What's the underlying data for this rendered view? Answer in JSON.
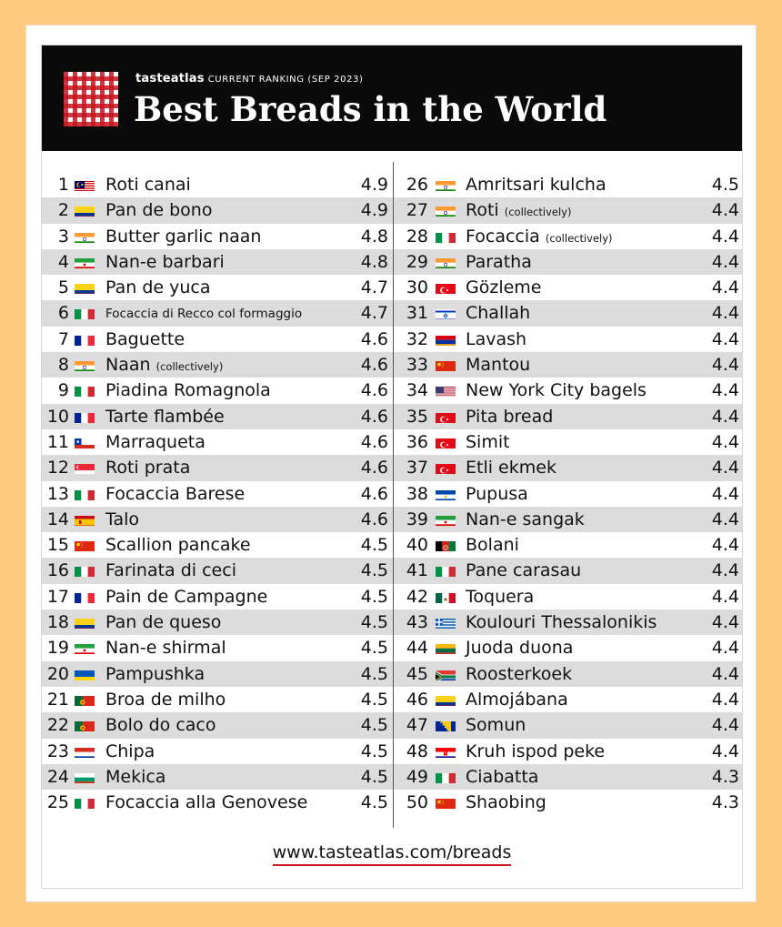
{
  "header": {
    "brand": "tasteatlas",
    "subtitle": "CURRENT RANKING (SEP 2023)",
    "title": "Best Breads in the World"
  },
  "left_column": [
    {
      "rank": "1",
      "name": "Roti canai",
      "note": "",
      "score": "4.9",
      "flag": "malaysia"
    },
    {
      "rank": "2",
      "name": "Pan de bono",
      "note": "",
      "score": "4.9",
      "flag": "colombia"
    },
    {
      "rank": "3",
      "name": "Butter garlic naan",
      "note": "",
      "score": "4.8",
      "flag": "india"
    },
    {
      "rank": "4",
      "name": "Nan-e barbari",
      "note": "",
      "score": "4.8",
      "flag": "iran"
    },
    {
      "rank": "5",
      "name": "Pan de yuca",
      "note": "",
      "score": "4.7",
      "flag": "colombia"
    },
    {
      "rank": "6",
      "name": "Focaccia di Recco col formaggio",
      "note": "",
      "score": "4.7",
      "flag": "italy",
      "small": true
    },
    {
      "rank": "7",
      "name": "Baguette",
      "note": "",
      "score": "4.6",
      "flag": "france"
    },
    {
      "rank": "8",
      "name": "Naan",
      "note": "(collectively)",
      "score": "4.6",
      "flag": "india"
    },
    {
      "rank": "9",
      "name": "Piadina Romagnola",
      "note": "",
      "score": "4.6",
      "flag": "italy"
    },
    {
      "rank": "10",
      "name": "Tarte flambée",
      "note": "",
      "score": "4.6",
      "flag": "france"
    },
    {
      "rank": "11",
      "name": "Marraqueta",
      "note": "",
      "score": "4.6",
      "flag": "chile"
    },
    {
      "rank": "12",
      "name": "Roti prata",
      "note": "",
      "score": "4.6",
      "flag": "singapore"
    },
    {
      "rank": "13",
      "name": "Focaccia Barese",
      "note": "",
      "score": "4.6",
      "flag": "italy"
    },
    {
      "rank": "14",
      "name": "Talo",
      "note": "",
      "score": "4.6",
      "flag": "spain"
    },
    {
      "rank": "15",
      "name": "Scallion pancake",
      "note": "",
      "score": "4.5",
      "flag": "china"
    },
    {
      "rank": "16",
      "name": "Farinata di ceci",
      "note": "",
      "score": "4.5",
      "flag": "italy"
    },
    {
      "rank": "17",
      "name": "Pain de Campagne",
      "note": "",
      "score": "4.5",
      "flag": "france"
    },
    {
      "rank": "18",
      "name": "Pan de queso",
      "note": "",
      "score": "4.5",
      "flag": "colombia"
    },
    {
      "rank": "19",
      "name": "Nan-e shirmal",
      "note": "",
      "score": "4.5",
      "flag": "iran"
    },
    {
      "rank": "20",
      "name": "Pampushka",
      "note": "",
      "score": "4.5",
      "flag": "ukraine"
    },
    {
      "rank": "21",
      "name": "Broa de milho",
      "note": "",
      "score": "4.5",
      "flag": "portugal"
    },
    {
      "rank": "22",
      "name": "Bolo do caco",
      "note": "",
      "score": "4.5",
      "flag": "portugal"
    },
    {
      "rank": "23",
      "name": "Chipa",
      "note": "",
      "score": "4.5",
      "flag": "paraguay"
    },
    {
      "rank": "24",
      "name": "Mekica",
      "note": "",
      "score": "4.5",
      "flag": "bulgaria"
    },
    {
      "rank": "25",
      "name": "Focaccia alla Genovese",
      "note": "",
      "score": "4.5",
      "flag": "italy"
    }
  ],
  "right_column": [
    {
      "rank": "26",
      "name": "Amritsari kulcha",
      "note": "",
      "score": "4.5",
      "flag": "india"
    },
    {
      "rank": "27",
      "name": "Roti",
      "note": "(collectively)",
      "score": "4.4",
      "flag": "india"
    },
    {
      "rank": "28",
      "name": "Focaccia",
      "note": "(collectively)",
      "score": "4.4",
      "flag": "italy"
    },
    {
      "rank": "29",
      "name": "Paratha",
      "note": "",
      "score": "4.4",
      "flag": "india"
    },
    {
      "rank": "30",
      "name": "Gözleme",
      "note": "",
      "score": "4.4",
      "flag": "turkey"
    },
    {
      "rank": "31",
      "name": "Challah",
      "note": "",
      "score": "4.4",
      "flag": "israel"
    },
    {
      "rank": "32",
      "name": "Lavash",
      "note": "",
      "score": "4.4",
      "flag": "armenia"
    },
    {
      "rank": "33",
      "name": "Mantou",
      "note": "",
      "score": "4.4",
      "flag": "china"
    },
    {
      "rank": "34",
      "name": "New York City bagels",
      "note": "",
      "score": "4.4",
      "flag": "usa"
    },
    {
      "rank": "35",
      "name": "Pita bread",
      "note": "",
      "score": "4.4",
      "flag": "turkey"
    },
    {
      "rank": "36",
      "name": "Simit",
      "note": "",
      "score": "4.4",
      "flag": "turkey"
    },
    {
      "rank": "37",
      "name": "Etli ekmek",
      "note": "",
      "score": "4.4",
      "flag": "turkey"
    },
    {
      "rank": "38",
      "name": "Pupusa",
      "note": "",
      "score": "4.4",
      "flag": "el-salvador"
    },
    {
      "rank": "39",
      "name": "Nan-e sangak",
      "note": "",
      "score": "4.4",
      "flag": "iran"
    },
    {
      "rank": "40",
      "name": "Bolani",
      "note": "",
      "score": "4.4",
      "flag": "afghanistan"
    },
    {
      "rank": "41",
      "name": "Pane carasau",
      "note": "",
      "score": "4.4",
      "flag": "italy"
    },
    {
      "rank": "42",
      "name": "Toquera",
      "note": "",
      "score": "4.4",
      "flag": "mexico"
    },
    {
      "rank": "43",
      "name": "Koulouri Thessalonikis",
      "note": "",
      "score": "4.4",
      "flag": "greece"
    },
    {
      "rank": "44",
      "name": "Juoda duona",
      "note": "",
      "score": "4.4",
      "flag": "lithuania"
    },
    {
      "rank": "45",
      "name": "Roosterkoek",
      "note": "",
      "score": "4.4",
      "flag": "south-africa"
    },
    {
      "rank": "46",
      "name": "Almojábana",
      "note": "",
      "score": "4.4",
      "flag": "colombia"
    },
    {
      "rank": "47",
      "name": "Somun",
      "note": "",
      "score": "4.4",
      "flag": "bosnia"
    },
    {
      "rank": "48",
      "name": "Kruh ispod peke",
      "note": "",
      "score": "4.4",
      "flag": "croatia"
    },
    {
      "rank": "49",
      "name": "Ciabatta",
      "note": "",
      "score": "4.3",
      "flag": "italy"
    },
    {
      "rank": "50",
      "name": "Shaobing",
      "note": "",
      "score": "4.3",
      "flag": "china"
    }
  ],
  "footer": {
    "url": "www.tasteatlas.com/breads"
  }
}
